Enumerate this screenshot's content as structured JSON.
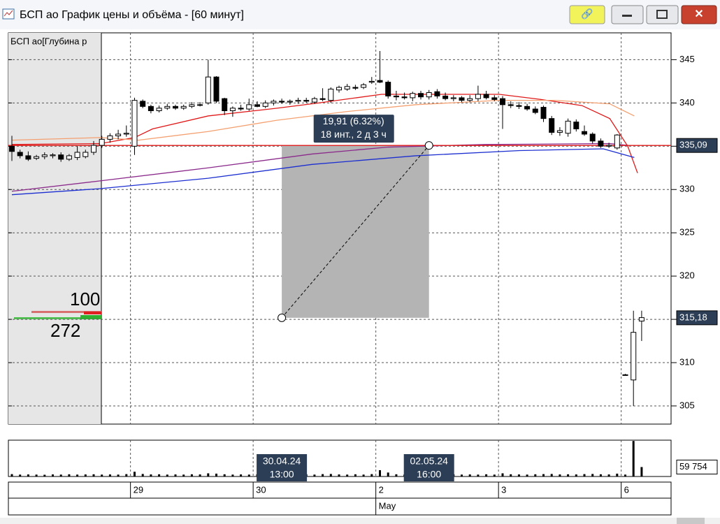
{
  "window_title": "БСП ао График цены и объёма - [60 минут]",
  "depth": {
    "title": "БСП ао[Глубина р",
    "ask": 100,
    "bid": 272
  },
  "chart_data": {
    "type": "candlestick",
    "categories": [
      null,
      null,
      null,
      null,
      null,
      null,
      null,
      null,
      null,
      null,
      null,
      null,
      null,
      null,
      null,
      "29",
      null,
      null,
      null,
      null,
      null,
      null,
      null,
      null,
      null,
      null,
      null,
      null,
      null,
      null,
      "30",
      null,
      null,
      null,
      null,
      null,
      null,
      null,
      null,
      null,
      null,
      null,
      null,
      null,
      null,
      "2",
      null,
      null,
      null,
      null,
      null,
      null,
      null,
      null,
      null,
      null,
      null,
      null,
      null,
      null,
      "3",
      null,
      null,
      null,
      null,
      null,
      null,
      null,
      null,
      null,
      null,
      null,
      null,
      null,
      null,
      "6",
      null,
      null
    ],
    "open": [
      335,
      334.3,
      333.9,
      333.6,
      333.8,
      333.9,
      334,
      333.5,
      333.7,
      333.8,
      334.3,
      335.1,
      335.8,
      336.2,
      336.4,
      335,
      340.2,
      339.6,
      339.1,
      339.4,
      339.6,
      339.4,
      339.6,
      339.8,
      340,
      343,
      340.5,
      339.1,
      339.4,
      339.3,
      339.8,
      339.6,
      340,
      340.2,
      340.1,
      340.2,
      340.3,
      340.1,
      340.5,
      340.3,
      341.5,
      341.6,
      341.8,
      341.8,
      342.4,
      342.6,
      342.4,
      340.8,
      340.7,
      340.6,
      341.1,
      340.7,
      341.3,
      340.8,
      340.5,
      340.6,
      340.3,
      340.5,
      341,
      340.6,
      340.5,
      339.8,
      339.7,
      339.6,
      339.3,
      339.5,
      338.2,
      336.6,
      336.5,
      337.8,
      336.7,
      336.4,
      335.6,
      335,
      334.8,
      308.6,
      308,
      314.8
    ],
    "high": [
      336.2,
      334.6,
      334.4,
      334,
      334.3,
      334.2,
      334.3,
      334.1,
      335,
      334.6,
      335.6,
      336.2,
      336.5,
      336.9,
      337.4,
      340.6,
      340.4,
      339.8,
      339.7,
      339.9,
      339.8,
      339.8,
      340.1,
      340.1,
      345,
      343.1,
      340.6,
      339.6,
      339.8,
      340.5,
      340.2,
      340.3,
      340.4,
      340.5,
      340.4,
      340.6,
      340.6,
      340.7,
      341.7,
      341.8,
      342,
      342.2,
      342.1,
      342.3,
      343,
      346,
      342.6,
      341.4,
      341.2,
      341.3,
      341.4,
      341.5,
      341.6,
      341.2,
      340.9,
      340.8,
      340.9,
      342,
      341.4,
      340.9,
      340.8,
      340.2,
      340.1,
      339.9,
      339.6,
      339.7,
      338.5,
      337.2,
      338.2,
      338.1,
      337.4,
      336.6,
      335.9,
      335.4,
      336.4,
      308.7,
      316,
      316
    ],
    "low": [
      333.3,
      333.6,
      333.3,
      333.4,
      333.5,
      333.6,
      333.2,
      333.3,
      333.4,
      333.6,
      334,
      334.8,
      335.4,
      335.8,
      336.1,
      334,
      339.4,
      338.8,
      338.9,
      339.2,
      339.2,
      339.2,
      339.4,
      339.6,
      339.8,
      340,
      338.6,
      338.4,
      339.1,
      339.1,
      339.5,
      339.4,
      339.7,
      339.9,
      339.8,
      339.9,
      340,
      339.9,
      340.2,
      340,
      341.2,
      341.4,
      341.5,
      341.6,
      342.2,
      342.3,
      340.5,
      340.3,
      340.4,
      340.2,
      340.4,
      340.4,
      340.5,
      340.3,
      340.2,
      340.1,
      340.1,
      340.2,
      340.4,
      340.2,
      337,
      339.4,
      339.3,
      339.1,
      338.7,
      337.8,
      336.3,
      336.2,
      336.1,
      336.7,
      336.2,
      335.3,
      334.8,
      334.8,
      334.6,
      308.5,
      305,
      312.5
    ],
    "close": [
      334.4,
      333.9,
      333.5,
      333.8,
      334,
      334,
      333.5,
      333.9,
      334.3,
      334.3,
      335.1,
      335.8,
      336.2,
      336.4,
      336.5,
      340.3,
      339.6,
      339.1,
      339.4,
      339.6,
      339.4,
      339.6,
      339.8,
      339.8,
      343,
      340.2,
      339.1,
      339.4,
      339.3,
      339.8,
      339.6,
      340,
      340.2,
      340.1,
      340.2,
      340.3,
      340.2,
      340.5,
      340.4,
      341.6,
      341.8,
      341.9,
      341.7,
      342.1,
      342.5,
      342.4,
      340.8,
      340.7,
      340.6,
      341.1,
      340.7,
      341.2,
      340.8,
      340.5,
      340.6,
      340.3,
      340.5,
      341,
      340.6,
      340.4,
      339.8,
      339.7,
      339.6,
      339.3,
      338.9,
      338.2,
      336.6,
      336.8,
      337.9,
      337,
      336.4,
      335.6,
      335,
      335.1,
      336.3,
      308.6,
      313.5,
      315.2
    ],
    "up_color": "#ffffff",
    "down_color": "#000000",
    "ylim": [
      302.9,
      348.1
    ],
    "yticks": [
      305,
      310,
      315,
      320,
      325,
      330,
      335,
      340,
      345
    ],
    "grid": true,
    "month": {
      "x": 45,
      "label": "May"
    },
    "indicators": [
      {
        "color": "#e01818",
        "x": [
          0,
          10.8,
          15,
          17.2,
          24,
          32.5,
          37.5,
          45.2,
          53.6,
          59.6,
          64.7,
          69.7,
          73.1,
          75.3,
          76.5
        ],
        "values": [
          335.2,
          335.3,
          336,
          337,
          338.5,
          339.4,
          340,
          341,
          341,
          341,
          340.4,
          339.7,
          338.2,
          335,
          331.9
        ]
      },
      {
        "color": "#f4a070",
        "x": [
          0,
          10.8,
          15.5,
          24,
          32.4,
          40.9,
          49.4,
          59.6,
          66.4,
          73.1,
          76.1
        ],
        "values": [
          335.7,
          336,
          335.7,
          336.7,
          338,
          339,
          339.8,
          340.3,
          340.3,
          339.9,
          338.5
        ]
      },
      {
        "color": "#8b2a8b",
        "x": [
          0,
          10.8,
          24,
          36.7,
          46,
          57.9,
          73.1,
          75.3
        ],
        "values": [
          329.8,
          331,
          332.5,
          334.1,
          334.9,
          335.2,
          335.3,
          335.1
        ]
      },
      {
        "color": "#1c2fd0",
        "x": [
          0,
          10.8,
          24,
          36.7,
          49.4,
          62.1,
          72.3,
          76.1
        ],
        "values": [
          329.4,
          330.1,
          331.3,
          332.9,
          333.9,
          334.5,
          334.7,
          333.7
        ]
      }
    ],
    "hlines": [
      {
        "value": 335.09,
        "label": "335,09",
        "color": "#e01818"
      },
      {
        "value": 315.18,
        "label": "315,18"
      }
    ],
    "measure": {
      "from": {
        "x": 33,
        "y": 315.18
      },
      "to": {
        "x": 51,
        "y": 335.09
      },
      "labels": [
        "19,91 (6.32%)",
        "18 инт., 2 д 3 ч"
      ]
    },
    "cursor_labels": [
      {
        "x": 33,
        "date": "30.04.24",
        "time": "13:00"
      },
      {
        "x": 51,
        "date": "02.05.24",
        "time": "16:00"
      }
    ],
    "volume": {
      "type": "bar",
      "color": "#000000",
      "ylim": [
        0,
        230000
      ],
      "values": [
        15000,
        12000,
        13000,
        12000,
        11000,
        13000,
        12000,
        14000,
        12000,
        13000,
        14000,
        12000,
        13000,
        12000,
        15000,
        30000,
        16000,
        13000,
        14000,
        12000,
        13000,
        12000,
        14000,
        13000,
        20000,
        18000,
        14000,
        12000,
        13000,
        12000,
        14000,
        12000,
        13000,
        12000,
        13000,
        12000,
        14000,
        12000,
        15000,
        16000,
        13000,
        12000,
        14000,
        12000,
        15000,
        40000,
        25000,
        14000,
        12000,
        13000,
        14000,
        12000,
        13000,
        12000,
        14000,
        12000,
        13000,
        12000,
        14000,
        12000,
        20000,
        14000,
        13000,
        12000,
        14000,
        15000,
        16000,
        13000,
        14000,
        13000,
        15000,
        16000,
        14000,
        13000,
        18000,
        12000,
        225000,
        59754
      ],
      "value_labels": [
        null,
        null,
        null,
        null,
        null,
        null,
        null,
        null,
        null,
        null,
        null,
        null,
        null,
        null,
        null,
        null,
        null,
        null,
        null,
        null,
        null,
        null,
        null,
        null,
        null,
        null,
        null,
        null,
        null,
        null,
        null,
        null,
        null,
        null,
        null,
        null,
        null,
        null,
        null,
        null,
        null,
        null,
        null,
        null,
        null,
        null,
        null,
        null,
        null,
        null,
        null,
        null,
        null,
        null,
        null,
        null,
        null,
        null,
        null,
        null,
        null,
        null,
        null,
        null,
        null,
        null,
        null,
        null,
        null,
        null,
        null,
        null,
        null,
        null,
        null,
        null,
        null,
        "59 754"
      ]
    }
  }
}
